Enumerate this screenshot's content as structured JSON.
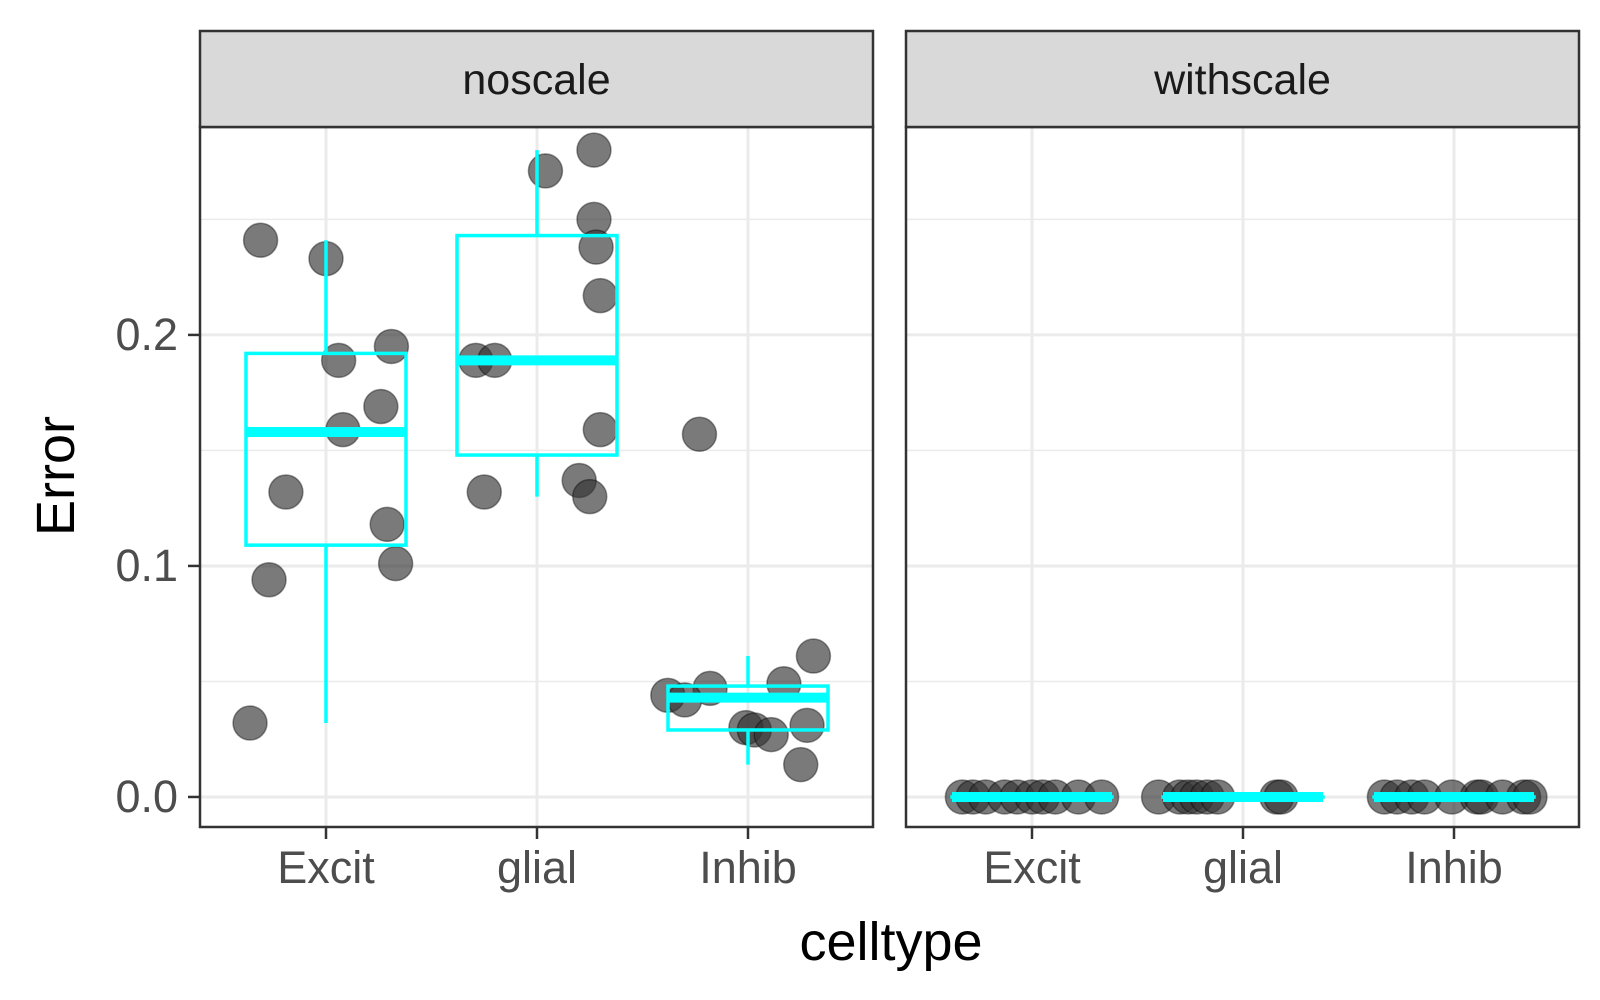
{
  "chart_data": {
    "type": "scatter",
    "xlabel": "celltype",
    "ylabel": "Error",
    "categories": [
      "Excit",
      "glial",
      "Inhib"
    ],
    "ylim": [
      -0.013,
      0.29
    ],
    "yticks": [
      "0.0",
      "0.1",
      "0.2"
    ],
    "ytick_values": [
      0.0,
      0.1,
      0.2
    ],
    "grid": true,
    "colors": {
      "box": "#00FFFF",
      "point": "#333333",
      "grid": "#ebebeb",
      "strip_bg": "#d9d9d9",
      "border": "#333333"
    },
    "panels": [
      {
        "label": "noscale",
        "points": [
          {
            "category": "Excit",
            "dx": -0.31,
            "y": 0.241
          },
          {
            "category": "Excit",
            "dx": 0.0,
            "y": 0.233
          },
          {
            "category": "Excit",
            "dx": 0.31,
            "y": 0.195
          },
          {
            "category": "Excit",
            "dx": 0.06,
            "y": 0.189
          },
          {
            "category": "Excit",
            "dx": 0.26,
            "y": 0.169
          },
          {
            "category": "Excit",
            "dx": 0.08,
            "y": 0.159
          },
          {
            "category": "Excit",
            "dx": -0.19,
            "y": 0.132
          },
          {
            "category": "Excit",
            "dx": 0.29,
            "y": 0.118
          },
          {
            "category": "Excit",
            "dx": 0.33,
            "y": 0.101
          },
          {
            "category": "Excit",
            "dx": -0.27,
            "y": 0.094
          },
          {
            "category": "Excit",
            "dx": -0.36,
            "y": 0.032
          },
          {
            "category": "glial",
            "dx": 0.04,
            "y": 0.271
          },
          {
            "category": "glial",
            "dx": 0.27,
            "y": 0.28
          },
          {
            "category": "glial",
            "dx": 0.27,
            "y": 0.25
          },
          {
            "category": "glial",
            "dx": 0.28,
            "y": 0.238
          },
          {
            "category": "glial",
            "dx": 0.3,
            "y": 0.217
          },
          {
            "category": "glial",
            "dx": -0.29,
            "y": 0.189
          },
          {
            "category": "glial",
            "dx": -0.2,
            "y": 0.189
          },
          {
            "category": "glial",
            "dx": 0.3,
            "y": 0.159
          },
          {
            "category": "glial",
            "dx": 0.2,
            "y": 0.137
          },
          {
            "category": "glial",
            "dx": 0.25,
            "y": 0.13
          },
          {
            "category": "glial",
            "dx": -0.25,
            "y": 0.132
          },
          {
            "category": "Inhib",
            "dx": -0.23,
            "y": 0.157
          },
          {
            "category": "Inhib",
            "dx": 0.31,
            "y": 0.061
          },
          {
            "category": "Inhib",
            "dx": 0.17,
            "y": 0.049
          },
          {
            "category": "Inhib",
            "dx": -0.18,
            "y": 0.047
          },
          {
            "category": "Inhib",
            "dx": -0.38,
            "y": 0.044
          },
          {
            "category": "Inhib",
            "dx": -0.3,
            "y": 0.042
          },
          {
            "category": "Inhib",
            "dx": -0.01,
            "y": 0.03
          },
          {
            "category": "Inhib",
            "dx": 0.03,
            "y": 0.029
          },
          {
            "category": "Inhib",
            "dx": 0.11,
            "y": 0.027
          },
          {
            "category": "Inhib",
            "dx": 0.28,
            "y": 0.031
          },
          {
            "category": "Inhib",
            "dx": 0.25,
            "y": 0.014
          }
        ],
        "boxes": [
          {
            "category": "Excit",
            "whisker_low": 0.032,
            "q1": 0.109,
            "median": 0.158,
            "q3": 0.192,
            "whisker_high": 0.241
          },
          {
            "category": "glial",
            "whisker_low": 0.13,
            "q1": 0.148,
            "median": 0.189,
            "q3": 0.243,
            "whisker_high": 0.28
          },
          {
            "category": "Inhib",
            "whisker_low": 0.014,
            "q1": 0.029,
            "median": 0.043,
            "q3": 0.048,
            "whisker_high": 0.061
          }
        ]
      },
      {
        "label": "withscale",
        "points": [
          {
            "category": "Excit",
            "dx": -0.33,
            "y": 0.0
          },
          {
            "category": "Excit",
            "dx": -0.28,
            "y": 0.0
          },
          {
            "category": "Excit",
            "dx": -0.22,
            "y": 0.0
          },
          {
            "category": "Excit",
            "dx": -0.13,
            "y": 0.0
          },
          {
            "category": "Excit",
            "dx": -0.07,
            "y": 0.0
          },
          {
            "category": "Excit",
            "dx": 0.0,
            "y": 0.0
          },
          {
            "category": "Excit",
            "dx": 0.05,
            "y": 0.0
          },
          {
            "category": "Excit",
            "dx": 0.11,
            "y": 0.0
          },
          {
            "category": "Excit",
            "dx": 0.22,
            "y": 0.0
          },
          {
            "category": "Excit",
            "dx": 0.33,
            "y": 0.0
          },
          {
            "category": "glial",
            "dx": -0.4,
            "y": 0.0
          },
          {
            "category": "glial",
            "dx": -0.3,
            "y": 0.0
          },
          {
            "category": "glial",
            "dx": -0.26,
            "y": 0.0
          },
          {
            "category": "glial",
            "dx": -0.22,
            "y": 0.0
          },
          {
            "category": "glial",
            "dx": -0.17,
            "y": 0.0
          },
          {
            "category": "glial",
            "dx": -0.12,
            "y": 0.0
          },
          {
            "category": "glial",
            "dx": 0.16,
            "y": 0.0
          },
          {
            "category": "glial",
            "dx": 0.18,
            "y": 0.0
          },
          {
            "category": "Inhib",
            "dx": -0.33,
            "y": 0.0
          },
          {
            "category": "Inhib",
            "dx": -0.27,
            "y": 0.0
          },
          {
            "category": "Inhib",
            "dx": -0.2,
            "y": 0.0
          },
          {
            "category": "Inhib",
            "dx": -0.14,
            "y": 0.0
          },
          {
            "category": "Inhib",
            "dx": -0.01,
            "y": 0.0
          },
          {
            "category": "Inhib",
            "dx": 0.11,
            "y": 0.0
          },
          {
            "category": "Inhib",
            "dx": 0.13,
            "y": 0.0
          },
          {
            "category": "Inhib",
            "dx": 0.23,
            "y": 0.0
          },
          {
            "category": "Inhib",
            "dx": 0.33,
            "y": 0.0
          },
          {
            "category": "Inhib",
            "dx": 0.36,
            "y": 0.0
          }
        ],
        "boxes": [
          {
            "category": "Excit",
            "whisker_low": 0.0,
            "q1": 0.0,
            "median": 0.0,
            "q3": 0.0,
            "whisker_high": 0.0
          },
          {
            "category": "glial",
            "whisker_low": 0.0,
            "q1": 0.0,
            "median": 0.0,
            "q3": 0.0,
            "whisker_high": 0.0
          },
          {
            "category": "Inhib",
            "whisker_low": 0.0,
            "q1": 0.0,
            "median": 0.0,
            "q3": 0.0,
            "whisker_high": 0.0
          }
        ]
      }
    ]
  }
}
